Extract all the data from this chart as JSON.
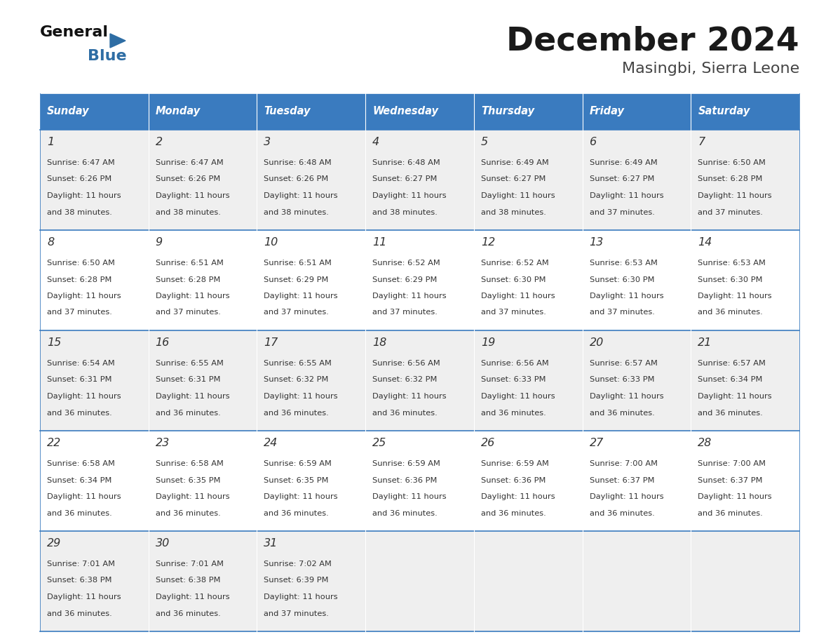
{
  "title": "December 2024",
  "subtitle": "Masingbi, Sierra Leone",
  "header_bg": "#3a7bbf",
  "header_text": "#ffffff",
  "weekdays": [
    "Sunday",
    "Monday",
    "Tuesday",
    "Wednesday",
    "Thursday",
    "Friday",
    "Saturday"
  ],
  "row_bg_odd": "#efefef",
  "row_bg_even": "#ffffff",
  "cell_border": "#3a7bbf",
  "day_number_color": "#333333",
  "info_text_color": "#333333",
  "background": "#ffffff",
  "calendar": [
    [
      {
        "day": 1,
        "sunrise": "6:47 AM",
        "sunset": "6:26 PM",
        "daylight": "11 hours and 38 minutes"
      },
      {
        "day": 2,
        "sunrise": "6:47 AM",
        "sunset": "6:26 PM",
        "daylight": "11 hours and 38 minutes"
      },
      {
        "day": 3,
        "sunrise": "6:48 AM",
        "sunset": "6:26 PM",
        "daylight": "11 hours and 38 minutes"
      },
      {
        "day": 4,
        "sunrise": "6:48 AM",
        "sunset": "6:27 PM",
        "daylight": "11 hours and 38 minutes"
      },
      {
        "day": 5,
        "sunrise": "6:49 AM",
        "sunset": "6:27 PM",
        "daylight": "11 hours and 38 minutes"
      },
      {
        "day": 6,
        "sunrise": "6:49 AM",
        "sunset": "6:27 PM",
        "daylight": "11 hours and 37 minutes"
      },
      {
        "day": 7,
        "sunrise": "6:50 AM",
        "sunset": "6:28 PM",
        "daylight": "11 hours and 37 minutes"
      }
    ],
    [
      {
        "day": 8,
        "sunrise": "6:50 AM",
        "sunset": "6:28 PM",
        "daylight": "11 hours and 37 minutes"
      },
      {
        "day": 9,
        "sunrise": "6:51 AM",
        "sunset": "6:28 PM",
        "daylight": "11 hours and 37 minutes"
      },
      {
        "day": 10,
        "sunrise": "6:51 AM",
        "sunset": "6:29 PM",
        "daylight": "11 hours and 37 minutes"
      },
      {
        "day": 11,
        "sunrise": "6:52 AM",
        "sunset": "6:29 PM",
        "daylight": "11 hours and 37 minutes"
      },
      {
        "day": 12,
        "sunrise": "6:52 AM",
        "sunset": "6:30 PM",
        "daylight": "11 hours and 37 minutes"
      },
      {
        "day": 13,
        "sunrise": "6:53 AM",
        "sunset": "6:30 PM",
        "daylight": "11 hours and 37 minutes"
      },
      {
        "day": 14,
        "sunrise": "6:53 AM",
        "sunset": "6:30 PM",
        "daylight": "11 hours and 36 minutes"
      }
    ],
    [
      {
        "day": 15,
        "sunrise": "6:54 AM",
        "sunset": "6:31 PM",
        "daylight": "11 hours and 36 minutes"
      },
      {
        "day": 16,
        "sunrise": "6:55 AM",
        "sunset": "6:31 PM",
        "daylight": "11 hours and 36 minutes"
      },
      {
        "day": 17,
        "sunrise": "6:55 AM",
        "sunset": "6:32 PM",
        "daylight": "11 hours and 36 minutes"
      },
      {
        "day": 18,
        "sunrise": "6:56 AM",
        "sunset": "6:32 PM",
        "daylight": "11 hours and 36 minutes"
      },
      {
        "day": 19,
        "sunrise": "6:56 AM",
        "sunset": "6:33 PM",
        "daylight": "11 hours and 36 minutes"
      },
      {
        "day": 20,
        "sunrise": "6:57 AM",
        "sunset": "6:33 PM",
        "daylight": "11 hours and 36 minutes"
      },
      {
        "day": 21,
        "sunrise": "6:57 AM",
        "sunset": "6:34 PM",
        "daylight": "11 hours and 36 minutes"
      }
    ],
    [
      {
        "day": 22,
        "sunrise": "6:58 AM",
        "sunset": "6:34 PM",
        "daylight": "11 hours and 36 minutes"
      },
      {
        "day": 23,
        "sunrise": "6:58 AM",
        "sunset": "6:35 PM",
        "daylight": "11 hours and 36 minutes"
      },
      {
        "day": 24,
        "sunrise": "6:59 AM",
        "sunset": "6:35 PM",
        "daylight": "11 hours and 36 minutes"
      },
      {
        "day": 25,
        "sunrise": "6:59 AM",
        "sunset": "6:36 PM",
        "daylight": "11 hours and 36 minutes"
      },
      {
        "day": 26,
        "sunrise": "6:59 AM",
        "sunset": "6:36 PM",
        "daylight": "11 hours and 36 minutes"
      },
      {
        "day": 27,
        "sunrise": "7:00 AM",
        "sunset": "6:37 PM",
        "daylight": "11 hours and 36 minutes"
      },
      {
        "day": 28,
        "sunrise": "7:00 AM",
        "sunset": "6:37 PM",
        "daylight": "11 hours and 36 minutes"
      }
    ],
    [
      {
        "day": 29,
        "sunrise": "7:01 AM",
        "sunset": "6:38 PM",
        "daylight": "11 hours and 36 minutes"
      },
      {
        "day": 30,
        "sunrise": "7:01 AM",
        "sunset": "6:38 PM",
        "daylight": "11 hours and 36 minutes"
      },
      {
        "day": 31,
        "sunrise": "7:02 AM",
        "sunset": "6:39 PM",
        "daylight": "11 hours and 37 minutes"
      },
      null,
      null,
      null,
      null
    ]
  ]
}
